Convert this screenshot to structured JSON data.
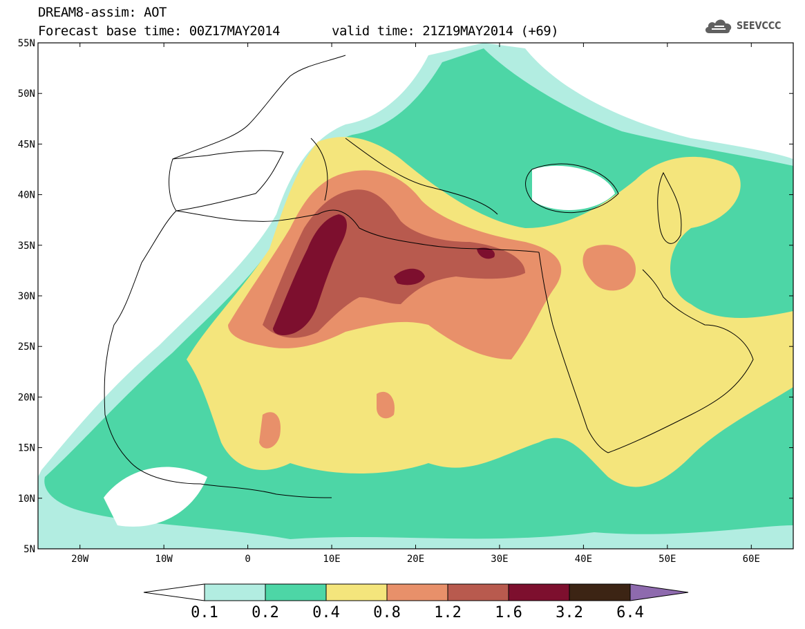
{
  "header": {
    "title_line1": "DREAM8-assim: AOT",
    "title_line2": "Forecast base time: 00Z17MAY2014",
    "valid_time": "valid time: 21Z19MAY2014 (+69)",
    "logo_text": "SEEVCCC"
  },
  "map": {
    "projection": "lat-lon",
    "lon_range": [
      -25,
      65
    ],
    "lat_range": [
      5,
      55
    ],
    "lat_labels": [
      "55N",
      "50N",
      "45N",
      "40N",
      "35N",
      "30N",
      "25N",
      "20N",
      "15N",
      "10N",
      "5N"
    ],
    "lon_labels": [
      "20W",
      "10W",
      "0",
      "10E",
      "20E",
      "30E",
      "40E",
      "50E",
      "60E"
    ],
    "variable": "AOT"
  },
  "colorbar": {
    "labels": [
      "0.1",
      "0.2",
      "0.4",
      "0.8",
      "1.2",
      "1.6",
      "3.2",
      "6.4"
    ],
    "colors": {
      "under": "#ffffff",
      "c1": "#b2ede1",
      "c2": "#4dd6a6",
      "c3": "#f4e57c",
      "c4": "#e8906a",
      "c5": "#b85a4e",
      "c6": "#7d0f2e",
      "c7": "#3c2414",
      "over": "#8e6aae"
    }
  }
}
